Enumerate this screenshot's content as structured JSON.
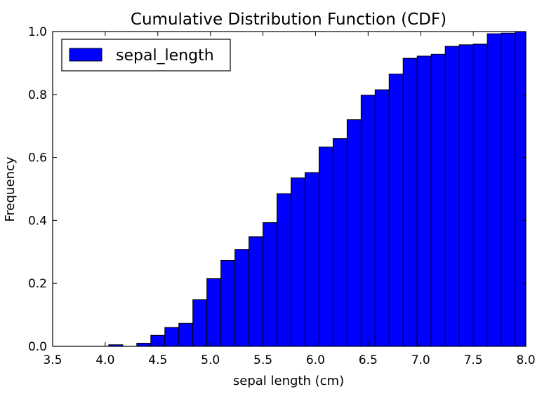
{
  "chart_data": {
    "type": "bar",
    "title": "Cumulative Distribution Function (CDF)",
    "xlabel": "sepal length (cm)",
    "ylabel": "Frequency",
    "xlim": [
      3.5,
      8.0
    ],
    "ylim": [
      0.0,
      1.0
    ],
    "xticks": [
      "3.5",
      "4.0",
      "4.5",
      "5.0",
      "5.5",
      "6.0",
      "6.5",
      "7.0",
      "7.5",
      "8.0"
    ],
    "yticks": [
      "0.0",
      "0.2",
      "0.4",
      "0.6",
      "0.8",
      "1.0"
    ],
    "grid": false,
    "legend": {
      "position": "top-left",
      "entries": [
        "sepal_length"
      ]
    },
    "bar_color": "#0000ff",
    "bin_width": 0.13333,
    "series": [
      {
        "name": "sepal_length",
        "bins_left": [
          3.5,
          3.6333,
          3.7667,
          3.9,
          4.0333,
          4.1667,
          4.3,
          4.4333,
          4.5667,
          4.7,
          4.8333,
          4.9667,
          5.1,
          5.2333,
          5.3667,
          5.5,
          5.6333,
          5.7667,
          5.9,
          6.0333,
          6.1667,
          6.3,
          6.4333,
          6.5667,
          6.7,
          6.8333,
          6.9667,
          7.1,
          7.2333,
          7.3667,
          7.5,
          7.6333,
          7.7667,
          7.9
        ],
        "values": [
          0.0,
          0.0,
          0.0,
          0.0,
          0.005,
          0.0,
          0.01,
          0.035,
          0.06,
          0.073,
          0.148,
          0.215,
          0.273,
          0.308,
          0.348,
          0.393,
          0.485,
          0.535,
          0.552,
          0.633,
          0.66,
          0.72,
          0.798,
          0.815,
          0.865,
          0.915,
          0.922,
          0.928,
          0.953,
          0.958,
          0.96,
          0.993,
          0.995,
          1.0
        ]
      }
    ]
  }
}
